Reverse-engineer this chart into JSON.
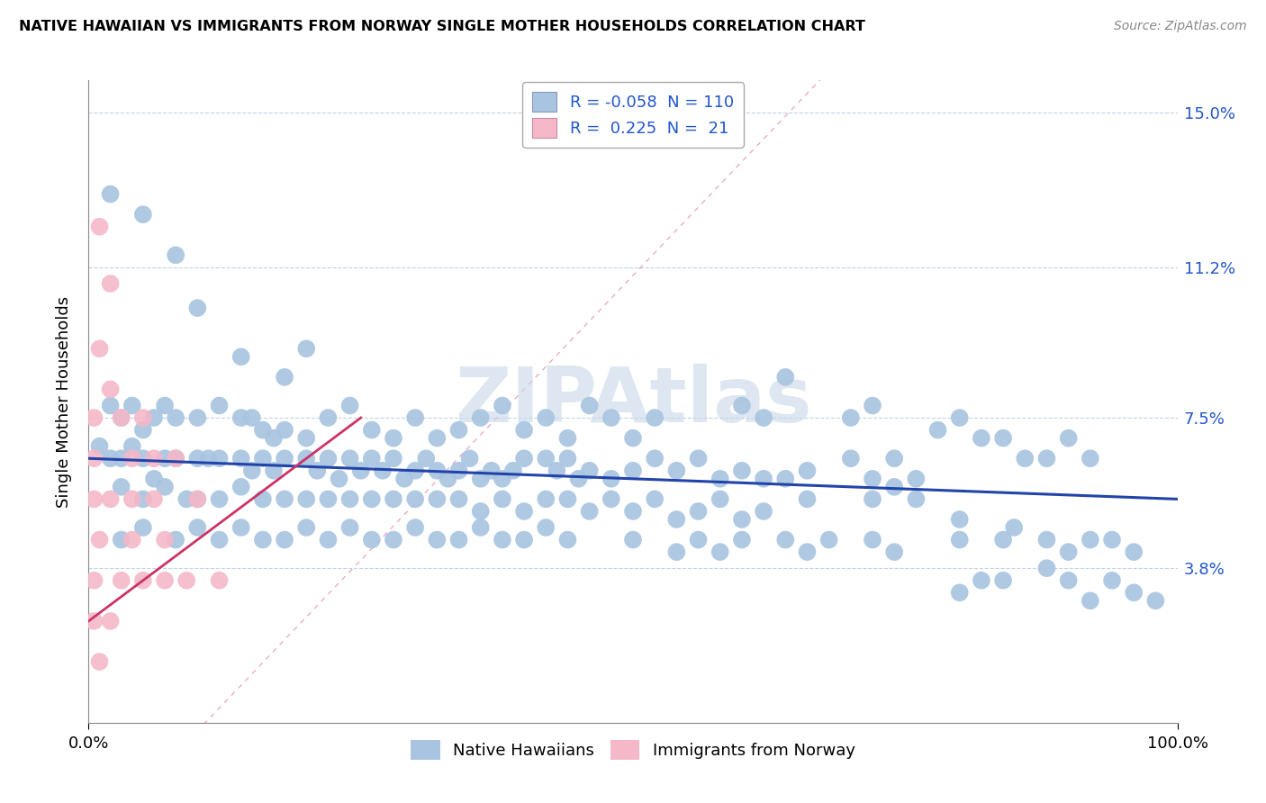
{
  "title": "NATIVE HAWAIIAN VS IMMIGRANTS FROM NORWAY SINGLE MOTHER HOUSEHOLDS CORRELATION CHART",
  "source": "Source: ZipAtlas.com",
  "ylabel": "Single Mother Households",
  "xlim": [
    0,
    100
  ],
  "ylim": [
    0,
    15.8
  ],
  "yticks": [
    0,
    3.8,
    7.5,
    11.2,
    15.0
  ],
  "ytick_labels": [
    "",
    "3.8%",
    "7.5%",
    "11.2%",
    "15.0%"
  ],
  "xtick_labels": [
    "0.0%",
    "100.0%"
  ],
  "blue_line": {
    "x": [
      0,
      100
    ],
    "y": [
      6.5,
      5.5
    ]
  },
  "pink_line_solid": {
    "x": [
      0,
      25
    ],
    "y": [
      2.5,
      7.5
    ]
  },
  "pink_line_dashed": {
    "x": [
      0,
      100
    ],
    "y": [
      -3,
      25
    ]
  },
  "blue_color": "#a8c4e0",
  "pink_color": "#f4b8c8",
  "blue_line_color": "#2244aa",
  "pink_line_color": "#cc3366",
  "blue_dots": [
    [
      2,
      13.0
    ],
    [
      5,
      12.5
    ],
    [
      8,
      11.5
    ],
    [
      10,
      10.2
    ],
    [
      14,
      9.0
    ],
    [
      18,
      8.5
    ],
    [
      20,
      9.2
    ],
    [
      2,
      7.8
    ],
    [
      3,
      7.5
    ],
    [
      4,
      7.8
    ],
    [
      5,
      7.2
    ],
    [
      6,
      7.5
    ],
    [
      7,
      7.8
    ],
    [
      8,
      7.5
    ],
    [
      10,
      7.5
    ],
    [
      12,
      7.8
    ],
    [
      14,
      7.5
    ],
    [
      15,
      7.5
    ],
    [
      16,
      7.2
    ],
    [
      17,
      7.0
    ],
    [
      18,
      7.2
    ],
    [
      20,
      7.0
    ],
    [
      22,
      7.5
    ],
    [
      24,
      7.8
    ],
    [
      26,
      7.2
    ],
    [
      28,
      7.0
    ],
    [
      30,
      7.5
    ],
    [
      32,
      7.0
    ],
    [
      34,
      7.2
    ],
    [
      36,
      7.5
    ],
    [
      38,
      7.8
    ],
    [
      40,
      7.2
    ],
    [
      42,
      7.5
    ],
    [
      44,
      7.0
    ],
    [
      46,
      7.8
    ],
    [
      48,
      7.5
    ],
    [
      50,
      7.0
    ],
    [
      52,
      7.5
    ],
    [
      60,
      7.8
    ],
    [
      62,
      7.5
    ],
    [
      64,
      8.5
    ],
    [
      70,
      7.5
    ],
    [
      72,
      7.8
    ],
    [
      1,
      6.8
    ],
    [
      2,
      6.5
    ],
    [
      3,
      6.5
    ],
    [
      4,
      6.8
    ],
    [
      5,
      6.5
    ],
    [
      6,
      6.0
    ],
    [
      7,
      6.5
    ],
    [
      8,
      6.5
    ],
    [
      10,
      6.5
    ],
    [
      11,
      6.5
    ],
    [
      12,
      6.5
    ],
    [
      14,
      6.5
    ],
    [
      15,
      6.2
    ],
    [
      16,
      6.5
    ],
    [
      17,
      6.2
    ],
    [
      18,
      6.5
    ],
    [
      20,
      6.5
    ],
    [
      21,
      6.2
    ],
    [
      22,
      6.5
    ],
    [
      23,
      6.0
    ],
    [
      24,
      6.5
    ],
    [
      25,
      6.2
    ],
    [
      26,
      6.5
    ],
    [
      27,
      6.2
    ],
    [
      28,
      6.5
    ],
    [
      29,
      6.0
    ],
    [
      30,
      6.2
    ],
    [
      31,
      6.5
    ],
    [
      32,
      6.2
    ],
    [
      33,
      6.0
    ],
    [
      34,
      6.2
    ],
    [
      35,
      6.5
    ],
    [
      36,
      6.0
    ],
    [
      37,
      6.2
    ],
    [
      38,
      6.0
    ],
    [
      39,
      6.2
    ],
    [
      40,
      6.5
    ],
    [
      42,
      6.5
    ],
    [
      43,
      6.2
    ],
    [
      44,
      6.5
    ],
    [
      45,
      6.0
    ],
    [
      46,
      6.2
    ],
    [
      48,
      6.0
    ],
    [
      50,
      6.2
    ],
    [
      52,
      6.5
    ],
    [
      54,
      6.2
    ],
    [
      56,
      6.5
    ],
    [
      58,
      6.0
    ],
    [
      60,
      6.2
    ],
    [
      62,
      6.0
    ],
    [
      64,
      6.0
    ],
    [
      66,
      6.2
    ],
    [
      70,
      6.5
    ],
    [
      72,
      6.0
    ],
    [
      74,
      6.5
    ],
    [
      76,
      6.0
    ],
    [
      78,
      7.2
    ],
    [
      80,
      7.5
    ],
    [
      82,
      7.0
    ],
    [
      84,
      7.0
    ],
    [
      86,
      6.5
    ],
    [
      88,
      6.5
    ],
    [
      90,
      7.0
    ],
    [
      92,
      6.5
    ],
    [
      3,
      5.8
    ],
    [
      5,
      5.5
    ],
    [
      7,
      5.8
    ],
    [
      9,
      5.5
    ],
    [
      10,
      5.5
    ],
    [
      12,
      5.5
    ],
    [
      14,
      5.8
    ],
    [
      16,
      5.5
    ],
    [
      18,
      5.5
    ],
    [
      20,
      5.5
    ],
    [
      22,
      5.5
    ],
    [
      24,
      5.5
    ],
    [
      26,
      5.5
    ],
    [
      28,
      5.5
    ],
    [
      30,
      5.5
    ],
    [
      32,
      5.5
    ],
    [
      34,
      5.5
    ],
    [
      36,
      5.2
    ],
    [
      38,
      5.5
    ],
    [
      40,
      5.2
    ],
    [
      42,
      5.5
    ],
    [
      44,
      5.5
    ],
    [
      46,
      5.2
    ],
    [
      48,
      5.5
    ],
    [
      50,
      5.2
    ],
    [
      52,
      5.5
    ],
    [
      54,
      5.0
    ],
    [
      56,
      5.2
    ],
    [
      58,
      5.5
    ],
    [
      60,
      5.0
    ],
    [
      62,
      5.2
    ],
    [
      66,
      5.5
    ],
    [
      72,
      5.5
    ],
    [
      74,
      5.8
    ],
    [
      76,
      5.5
    ],
    [
      80,
      5.0
    ],
    [
      3,
      4.5
    ],
    [
      5,
      4.8
    ],
    [
      8,
      4.5
    ],
    [
      10,
      4.8
    ],
    [
      12,
      4.5
    ],
    [
      14,
      4.8
    ],
    [
      16,
      4.5
    ],
    [
      18,
      4.5
    ],
    [
      20,
      4.8
    ],
    [
      22,
      4.5
    ],
    [
      24,
      4.8
    ],
    [
      26,
      4.5
    ],
    [
      28,
      4.5
    ],
    [
      30,
      4.8
    ],
    [
      32,
      4.5
    ],
    [
      34,
      4.5
    ],
    [
      36,
      4.8
    ],
    [
      38,
      4.5
    ],
    [
      40,
      4.5
    ],
    [
      42,
      4.8
    ],
    [
      44,
      4.5
    ],
    [
      50,
      4.5
    ],
    [
      54,
      4.2
    ],
    [
      56,
      4.5
    ],
    [
      58,
      4.2
    ],
    [
      60,
      4.5
    ],
    [
      64,
      4.5
    ],
    [
      66,
      4.2
    ],
    [
      68,
      4.5
    ],
    [
      72,
      4.5
    ],
    [
      74,
      4.2
    ],
    [
      80,
      4.5
    ],
    [
      84,
      4.5
    ],
    [
      85,
      4.8
    ],
    [
      88,
      4.5
    ],
    [
      90,
      4.2
    ],
    [
      92,
      4.5
    ],
    [
      94,
      4.5
    ],
    [
      96,
      4.2
    ],
    [
      98,
      3.0
    ],
    [
      80,
      3.2
    ],
    [
      82,
      3.5
    ],
    [
      84,
      3.5
    ],
    [
      88,
      3.8
    ],
    [
      90,
      3.5
    ],
    [
      92,
      3.0
    ],
    [
      94,
      3.5
    ],
    [
      96,
      3.2
    ]
  ],
  "pink_dots": [
    [
      1,
      12.2
    ],
    [
      2,
      10.8
    ],
    [
      1,
      9.2
    ],
    [
      2,
      8.2
    ],
    [
      0.5,
      7.5
    ],
    [
      3,
      7.5
    ],
    [
      5,
      7.5
    ],
    [
      0.5,
      6.5
    ],
    [
      4,
      6.5
    ],
    [
      6,
      6.5
    ],
    [
      8,
      6.5
    ],
    [
      0.5,
      5.5
    ],
    [
      2,
      5.5
    ],
    [
      4,
      5.5
    ],
    [
      6,
      5.5
    ],
    [
      10,
      5.5
    ],
    [
      1,
      4.5
    ],
    [
      4,
      4.5
    ],
    [
      7,
      4.5
    ],
    [
      0.5,
      3.5
    ],
    [
      3,
      3.5
    ],
    [
      5,
      3.5
    ],
    [
      7,
      3.5
    ],
    [
      9,
      3.5
    ],
    [
      12,
      3.5
    ],
    [
      0.5,
      2.5
    ],
    [
      2,
      2.5
    ],
    [
      1,
      1.5
    ]
  ],
  "watermark_text": "ZIPAtlas",
  "watermark_color": "#c8d8e8",
  "bottom_legend": [
    {
      "label": "Native Hawaiians",
      "color": "#a8c4e0"
    },
    {
      "label": "Immigrants from Norway",
      "color": "#f4b8c8"
    }
  ]
}
